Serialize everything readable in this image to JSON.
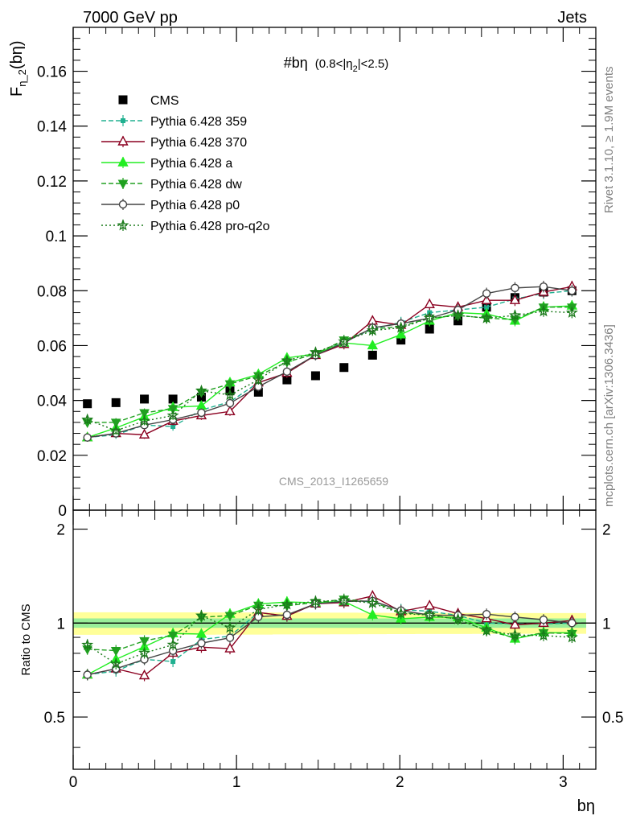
{
  "chart_data": [
    {
      "type": "line",
      "panel": "main",
      "header_left": "7000 GeV pp",
      "header_right": "Jets",
      "title": "#bη",
      "title_suffix": "(0.8<|η",
      "title_suffix_sub": "2",
      "title_suffix_end": "|<2.5)",
      "ylabel_main": "F",
      "ylabel_sub": "η_2",
      "ylabel_end": "(bη)",
      "xlabel": "bη",
      "side_label_top": "Rivet 3.1.10, ≥ 1.9M events",
      "side_label_bottom": "mcplots.cern.ch [arXiv:1306.3436]",
      "watermark": "CMS_2013_I1265659",
      "xlim": [
        0,
        3.2
      ],
      "ylim": [
        0,
        0.176
      ],
      "x_ticks": [
        0,
        1,
        2,
        3
      ],
      "x_tick_labels": [
        "0",
        "1",
        "2",
        "3"
      ],
      "y_ticks": [
        0,
        0.02,
        0.04,
        0.06,
        0.08,
        0.1,
        0.12,
        0.14,
        0.16
      ],
      "y_tick_labels": [
        "0",
        "0.02",
        "0.04",
        "0.06",
        "0.08",
        "0.1",
        "0.12",
        "0.14",
        "0.16"
      ],
      "legend_position": "top-left",
      "x": [
        0.087,
        0.262,
        0.436,
        0.611,
        0.785,
        0.96,
        1.134,
        1.309,
        1.484,
        1.658,
        1.833,
        2.007,
        2.182,
        2.356,
        2.531,
        2.705,
        2.88,
        3.054
      ],
      "series": [
        {
          "name": "CMS",
          "color": "#000000",
          "marker": "square",
          "dash": "none",
          "values": [
            0.0388,
            0.0392,
            0.0405,
            0.0405,
            0.0412,
            0.0435,
            0.043,
            0.0475,
            0.049,
            0.052,
            0.0565,
            0.062,
            0.066,
            0.069,
            0.074,
            0.0775,
            0.0795,
            0.08
          ]
        },
        {
          "name": "Pythia 6.428 359",
          "color": "#20b090",
          "marker": "small-square",
          "dash": "6,3",
          "values": [
            0.0265,
            0.0275,
            0.031,
            0.0305,
            0.0365,
            0.0395,
            0.0465,
            0.05,
            0.0565,
            0.0615,
            0.066,
            0.0685,
            0.072,
            0.073,
            0.074,
            0.077,
            0.079,
            0.08
          ]
        },
        {
          "name": "Pythia 6.428 370",
          "color": "#8b0020",
          "marker": "open-triangle-up",
          "dash": "none",
          "values": [
            0.0265,
            0.028,
            0.0275,
            0.0325,
            0.0345,
            0.036,
            0.0465,
            0.05,
            0.0565,
            0.0605,
            0.069,
            0.0675,
            0.075,
            0.074,
            0.0765,
            0.0765,
            0.0795,
            0.0815
          ]
        },
        {
          "name": "Pythia 6.428 a",
          "color": "#22ee22",
          "marker": "triangle-up",
          "dash": "none",
          "values": [
            0.0265,
            0.03,
            0.034,
            0.0375,
            0.038,
            0.0465,
            0.0495,
            0.0555,
            0.057,
            0.061,
            0.06,
            0.064,
            0.069,
            0.072,
            0.0715,
            0.069,
            0.074,
            0.0745
          ]
        },
        {
          "name": "Pythia 6.428 dw",
          "color": "#20a020",
          "marker": "triangle-down",
          "dash": "6,3",
          "values": [
            0.032,
            0.032,
            0.0355,
            0.037,
            0.043,
            0.046,
            0.049,
            0.054,
            0.057,
            0.062,
            0.066,
            0.067,
            0.07,
            0.071,
            0.07,
            0.0695,
            0.074,
            0.074
          ]
        },
        {
          "name": "Pythia 6.428 p0",
          "color": "#444444",
          "marker": "open-circle",
          "dash": "none",
          "values": [
            0.0265,
            0.028,
            0.031,
            0.033,
            0.0355,
            0.039,
            0.045,
            0.0505,
            0.0565,
            0.061,
            0.0665,
            0.068,
            0.07,
            0.073,
            0.079,
            0.081,
            0.0815,
            0.08
          ]
        },
        {
          "name": "Pythia 6.428 pro-q2o",
          "color": "#1a7a1a",
          "marker": "open-star",
          "dash": "2,3",
          "values": [
            0.033,
            0.029,
            0.0325,
            0.0345,
            0.0435,
            0.042,
            0.0475,
            0.0545,
            0.0575,
            0.0615,
            0.0655,
            0.0665,
            0.07,
            0.071,
            0.07,
            0.071,
            0.0725,
            0.072
          ]
        }
      ]
    },
    {
      "type": "line",
      "panel": "ratio",
      "ylabel": "Ratio to CMS",
      "xlim": [
        0,
        3.2
      ],
      "ylim": [
        0.34,
        2.3
      ],
      "y_ticks": [
        0.5,
        1,
        2
      ],
      "y_tick_labels": [
        "0.5",
        "1",
        "2"
      ],
      "band_outer_color": "#ffff99",
      "band_inner_color": "#99ee99",
      "series_ratio": [
        [
          0.683,
          0.702,
          0.765,
          0.753,
          0.886,
          0.908,
          1.081,
          1.053,
          1.153,
          1.183,
          1.168,
          1.105,
          1.091,
          1.058,
          1.0,
          0.994,
          0.994,
          1.0
        ],
        [
          0.683,
          0.714,
          0.679,
          0.802,
          0.837,
          0.828,
          1.081,
          1.053,
          1.153,
          1.163,
          1.221,
          1.089,
          1.136,
          1.072,
          1.034,
          0.987,
          1.0,
          1.019
        ],
        [
          0.683,
          0.765,
          0.84,
          0.926,
          0.922,
          1.069,
          1.151,
          1.168,
          1.163,
          1.173,
          1.062,
          1.032,
          1.045,
          1.043,
          0.966,
          0.89,
          0.931,
          0.931
        ],
        [
          0.825,
          0.816,
          0.877,
          0.914,
          1.044,
          1.057,
          1.14,
          1.137,
          1.163,
          1.192,
          1.168,
          1.081,
          1.061,
          1.029,
          0.946,
          0.897,
          0.931,
          0.925
        ],
        [
          0.683,
          0.714,
          0.765,
          0.815,
          0.862,
          0.897,
          1.047,
          1.063,
          1.153,
          1.173,
          1.177,
          1.097,
          1.061,
          1.058,
          1.068,
          1.045,
          1.025,
          1.0
        ],
        [
          0.851,
          0.74,
          0.802,
          0.852,
          1.056,
          0.966,
          1.105,
          1.147,
          1.173,
          1.183,
          1.159,
          1.073,
          1.061,
          1.029,
          0.946,
          0.916,
          0.912,
          0.9
        ]
      ]
    }
  ]
}
